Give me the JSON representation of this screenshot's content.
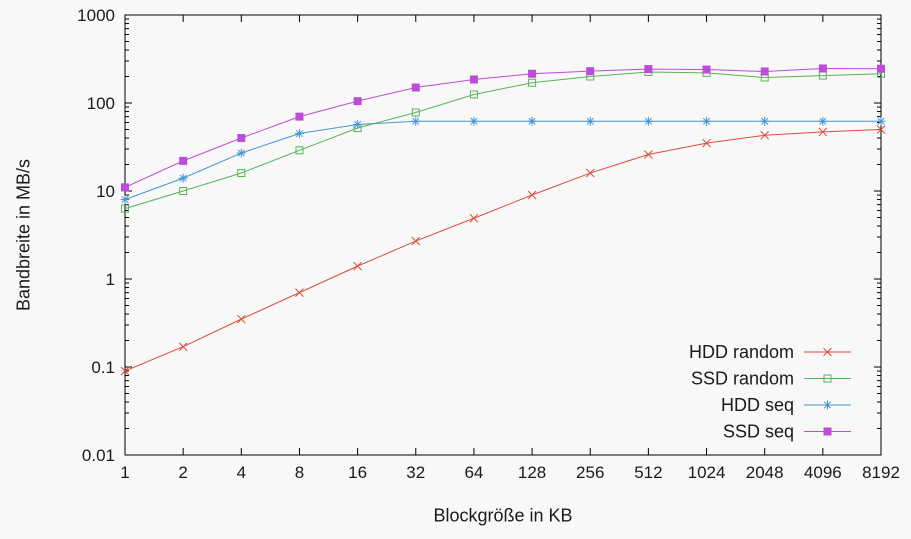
{
  "figure": {
    "background": "#f8f8f8",
    "text_color": "#1a1a1a",
    "axis_color": "#000000"
  },
  "chart_data": {
    "type": "line",
    "xscale": "log2",
    "yscale": "log10",
    "xlabel": "Blockgröße in KB",
    "ylabel": "Bandbreite in MB/s",
    "x": [
      1,
      2,
      4,
      8,
      16,
      32,
      64,
      128,
      256,
      512,
      1024,
      2048,
      4096,
      8192
    ],
    "x_tick_labels": [
      "1",
      "2",
      "4",
      "8",
      "16",
      "32",
      "64",
      "128",
      "256",
      "512",
      "1024",
      "2048",
      "4096",
      "8192"
    ],
    "y_tick_labels": [
      "0.01",
      "0.1",
      "1",
      "10",
      "100",
      "1000"
    ],
    "y_ticks": [
      0.01,
      0.1,
      1,
      10,
      100,
      1000
    ],
    "ylim": [
      0.01,
      1000
    ],
    "grid": false,
    "legend_position": "bottom-right",
    "series": [
      {
        "name": "HDD random",
        "color": "#df4b3e",
        "marker": "cross",
        "values": [
          0.09,
          0.17,
          0.35,
          0.7,
          1.4,
          2.7,
          4.9,
          9,
          16,
          26,
          35,
          43,
          47,
          50
        ]
      },
      {
        "name": "SSD random",
        "color": "#57b457",
        "marker": "open-square",
        "values": [
          6.3,
          10,
          16,
          29,
          52,
          78,
          125,
          170,
          200,
          225,
          220,
          195,
          205,
          215
        ]
      },
      {
        "name": "HDD seq",
        "color": "#4596d1",
        "marker": "asterisk",
        "values": [
          8,
          14,
          27,
          45,
          57,
          62,
          62,
          62,
          62,
          62,
          62,
          62,
          62,
          62
        ]
      },
      {
        "name": "SSD seq",
        "color": "#bd4cd8",
        "marker": "filled-square",
        "values": [
          11,
          22,
          40,
          70,
          105,
          150,
          185,
          215,
          230,
          243,
          240,
          228,
          247,
          245
        ]
      }
    ]
  }
}
